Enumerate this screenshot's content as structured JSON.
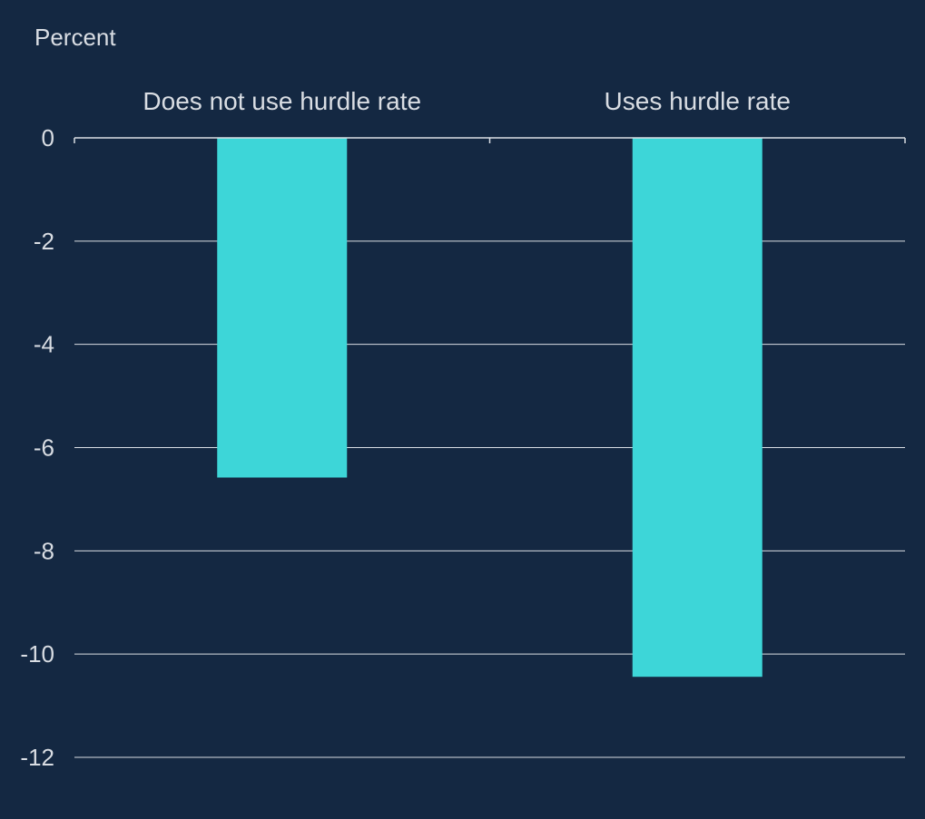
{
  "chart_data": {
    "type": "bar",
    "title": "",
    "xlabel": "",
    "ylabel": "Percent",
    "categories": [
      "Does not use hurdle rate",
      "Uses hurdle rate"
    ],
    "values": [
      -6.58,
      -10.44
    ],
    "ylim": [
      -12,
      0
    ],
    "yticks": [
      0,
      -2,
      -4,
      -6,
      -8,
      -10,
      -12
    ],
    "ytick_labels": [
      "0",
      "-2",
      "-4",
      "-6",
      "-8",
      "-10",
      "-12"
    ],
    "grid": true,
    "legend": "none",
    "colors": {
      "background": "#142842",
      "bar": "#3dd6d8",
      "grid": "#d9dde3",
      "text": "#d9dde3"
    }
  }
}
